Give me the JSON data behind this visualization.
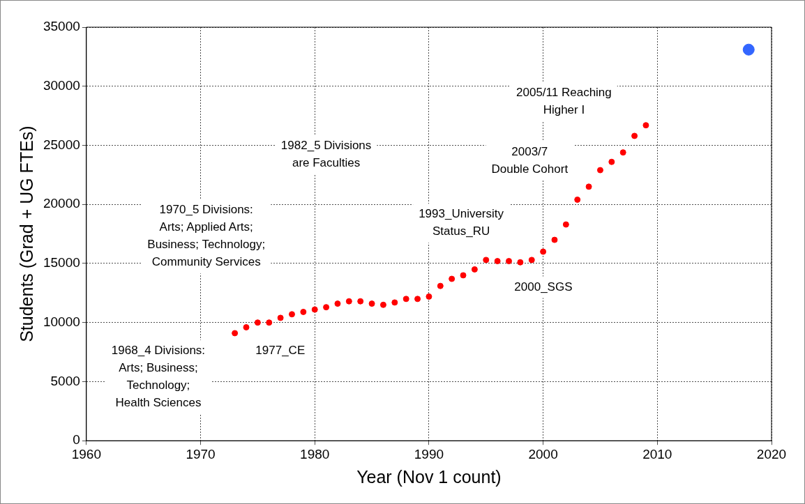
{
  "chart_data": {
    "type": "scatter",
    "xlabel": "Year (Nov 1 count)",
    "ylabel": "Students (Grad + UG FTEs)",
    "series": [
      {
        "color": "#ff0000",
        "marker": "circle",
        "x": [
          1973,
          1974,
          1975,
          1976,
          1977,
          1978,
          1979,
          1980,
          1981,
          1982,
          1983,
          1984,
          1985,
          1986,
          1987,
          1988,
          1989,
          1990,
          1991,
          1992,
          1993,
          1994,
          1995,
          1996,
          1997,
          1998,
          1999,
          2000,
          2001,
          2002,
          2003,
          2004,
          2005,
          2006,
          2007,
          2008,
          2009
        ],
        "values": [
          9100,
          9600,
          10000,
          10000,
          10400,
          10700,
          10900,
          11100,
          11300,
          11600,
          11800,
          11800,
          11600,
          11500,
          11700,
          12000,
          12000,
          12200,
          13100,
          13700,
          14000,
          14500,
          15300,
          15200,
          15200,
          15100,
          15300,
          16000,
          17000,
          18300,
          20400,
          21500,
          22900,
          23600,
          24400,
          25800,
          26700
        ]
      },
      {
        "color": "#3366ff",
        "marker": "circle",
        "x": [
          2018
        ],
        "values": [
          33100
        ]
      }
    ],
    "xlim": [
      1960,
      2020
    ],
    "xticks": [
      1960,
      1970,
      1980,
      1990,
      2000,
      2010,
      2020
    ],
    "ylim": [
      0,
      35000
    ],
    "yticks": [
      0,
      5000,
      10000,
      15000,
      20000,
      25000,
      30000,
      35000
    ],
    "grid": true,
    "legend": false,
    "annotations": [
      "1968_4 Divisions:\nArts; Business;\nTechnology;\nHealth Sciences",
      "1970_5 Divisions:\nArts; Applied Arts;\nBusiness; Technology;\nCommunity Services",
      "1977_CE",
      "1982_5 Divisions\nare Faculties",
      "1993_University\nStatus_RU",
      "2000_SGS",
      "2003/7\nDouble Cohort",
      "2005/11 Reaching\nHigher I"
    ]
  }
}
